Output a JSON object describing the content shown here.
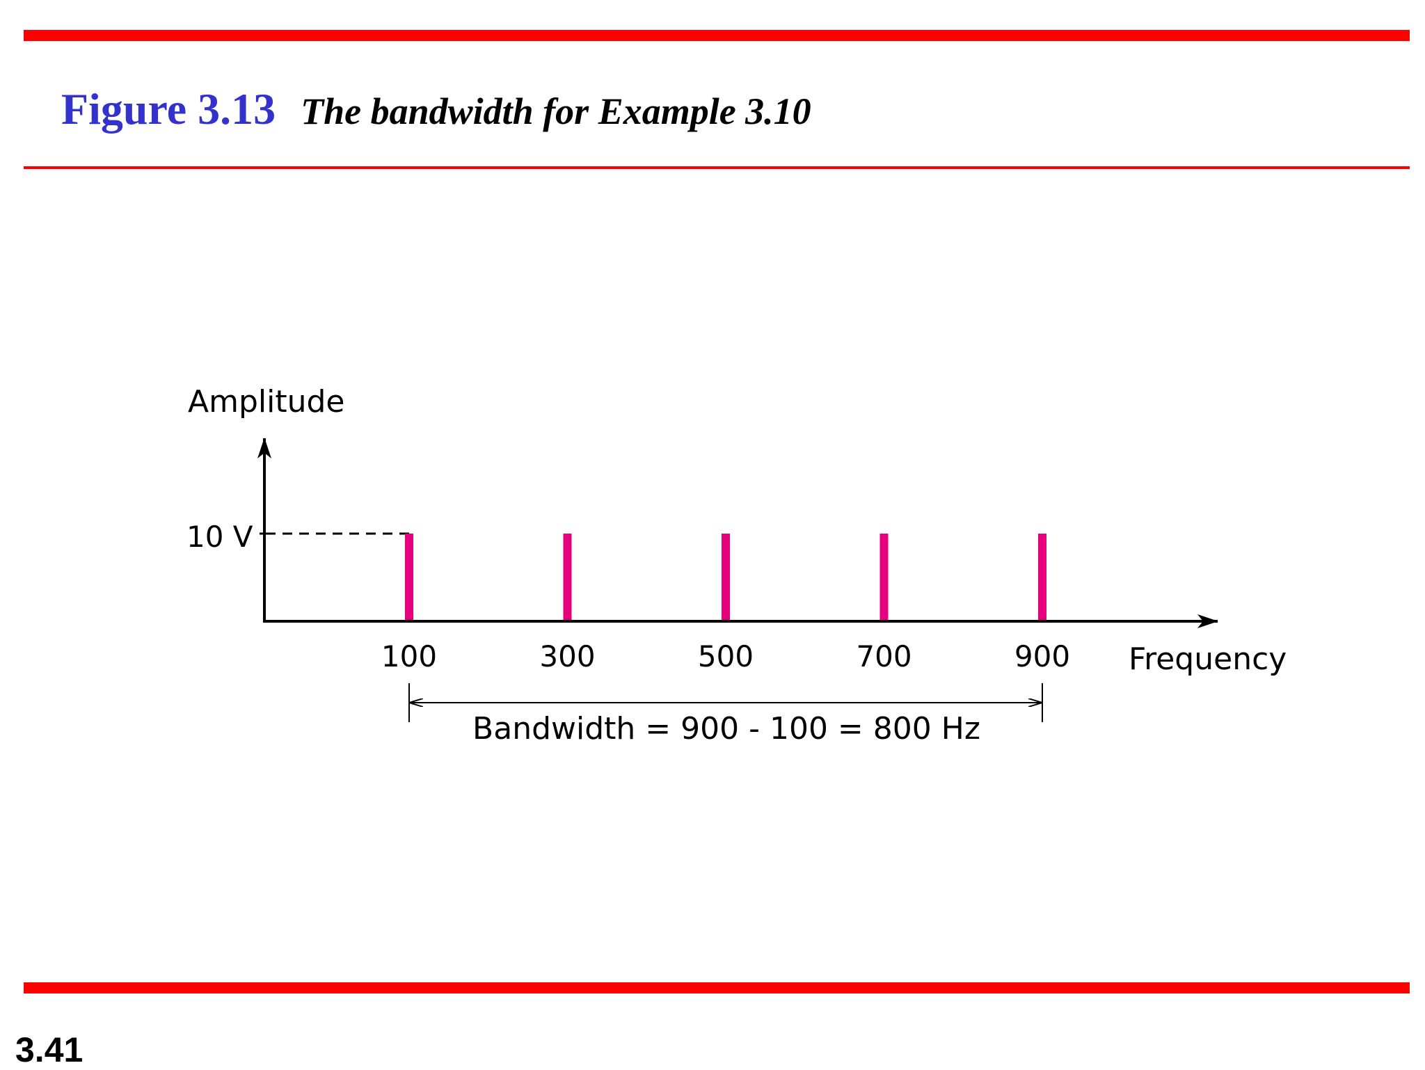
{
  "title": {
    "figure_number": "Figure 3.13",
    "caption": "The bandwidth for Example 3.10"
  },
  "slide_number": "3.41",
  "colors": {
    "rule": "#ff0000",
    "figure_number": "#3333cc",
    "bar": "#e6007e"
  },
  "chart_data": {
    "type": "bar",
    "ylabel": "Amplitude",
    "xlabel": "Frequency",
    "ytick_label": "10 V",
    "y_reference": 10,
    "categories": [
      "100",
      "300",
      "500",
      "700",
      "900"
    ],
    "x": [
      100,
      300,
      500,
      700,
      900
    ],
    "values": [
      10,
      10,
      10,
      10,
      10
    ],
    "bandwidth_label": "Bandwidth = 900 - 100 = 800 Hz",
    "bandwidth_range": [
      100,
      900
    ],
    "grid": false
  }
}
